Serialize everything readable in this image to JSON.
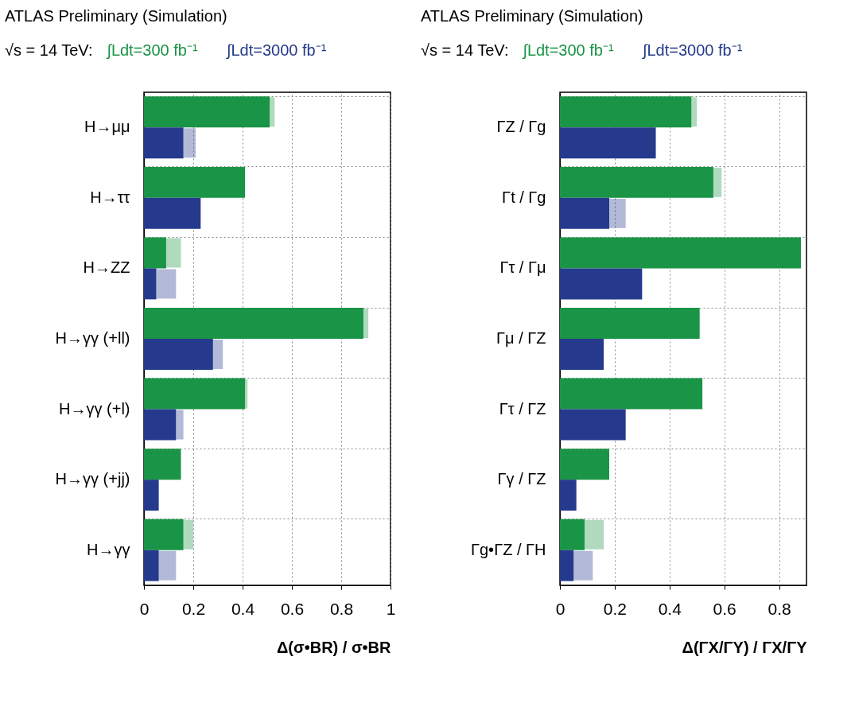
{
  "chart_data": [
    {
      "type": "bar",
      "orientation": "horizontal",
      "title": "ATLAS Preliminary (Simulation)",
      "subtitle": "√s = 14 TeV:",
      "legend": "top",
      "grid": true,
      "categories": [
        "H→μμ",
        "H→ττ",
        "H→ZZ",
        "H→γγ (+ll)",
        "H→γγ (+l)",
        "H→γγ (+jj)",
        "H→γγ"
      ],
      "series": [
        {
          "name": "∫Ldt=300 fb⁻¹",
          "color": "#1a9446",
          "values": [
            0.51,
            0.41,
            0.09,
            0.89,
            0.41,
            0.15,
            0.16
          ],
          "errors": [
            [
              0.51,
              0.53
            ],
            null,
            [
              0.09,
              0.15
            ],
            [
              0.89,
              0.91
            ],
            [
              0.41,
              0.42
            ],
            null,
            [
              0.16,
              0.2
            ]
          ]
        },
        {
          "name": "∫Ldt=3000 fb⁻¹",
          "color": "#253a8c",
          "values": [
            0.16,
            0.23,
            0.05,
            0.28,
            0.13,
            0.06,
            0.06
          ],
          "errors": [
            [
              0.16,
              0.21
            ],
            null,
            [
              0.05,
              0.13
            ],
            [
              0.28,
              0.32
            ],
            [
              0.13,
              0.16
            ],
            null,
            [
              0.06,
              0.13
            ]
          ]
        }
      ],
      "xlim": [
        0,
        1
      ],
      "xticks": [
        0,
        0.2,
        0.4,
        0.6,
        0.8,
        1
      ],
      "xlabel": "Δ(σ•BR) / σ•BR"
    },
    {
      "type": "bar",
      "orientation": "horizontal",
      "title": "ATLAS Preliminary (Simulation)",
      "subtitle": "√s = 14 TeV:",
      "legend": "top",
      "grid": true,
      "categories": [
        "ΓZ / Γg",
        "Γt / Γg",
        "Γτ / Γμ",
        "Γμ / ΓZ",
        "Γτ / ΓZ",
        "Γγ / ΓZ",
        "Γg•ΓZ / ΓH"
      ],
      "series": [
        {
          "name": "∫Ldt=300 fb⁻¹",
          "color": "#1a9446",
          "values": [
            0.48,
            0.56,
            0.88,
            0.51,
            0.52,
            0.18,
            0.09
          ],
          "errors": [
            [
              0.48,
              0.5
            ],
            [
              0.56,
              0.59
            ],
            null,
            null,
            null,
            null,
            [
              0.09,
              0.16
            ]
          ]
        },
        {
          "name": "∫Ldt=3000 fb⁻¹",
          "color": "#253a8c",
          "values": [
            0.35,
            0.18,
            0.3,
            0.16,
            0.24,
            0.06,
            0.05
          ],
          "errors": [
            null,
            [
              0.18,
              0.24
            ],
            null,
            null,
            null,
            null,
            [
              0.05,
              0.12
            ]
          ]
        }
      ],
      "xlim": [
        0,
        0.9
      ],
      "xticks": [
        0,
        0.2,
        0.4,
        0.6,
        0.8
      ],
      "xlabel": "Δ(ΓX/ΓY) / ΓX/ΓY"
    }
  ]
}
